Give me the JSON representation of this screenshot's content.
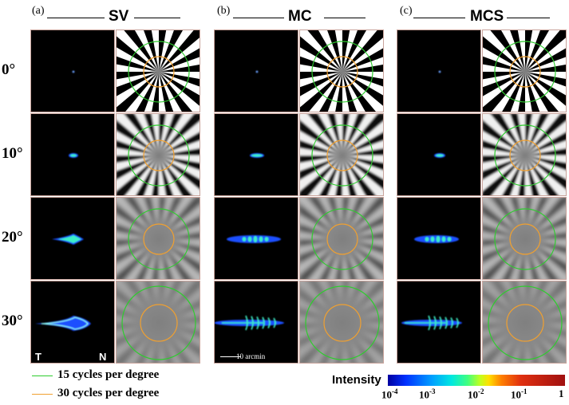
{
  "groups": [
    {
      "letter": "(a)",
      "title": "SV"
    },
    {
      "letter": "(b)",
      "title": "MC"
    },
    {
      "letter": "(c)",
      "title": "MCS"
    }
  ],
  "angles": [
    "0°",
    "10°",
    "20°",
    "30°"
  ],
  "psf_labels": {
    "temporal": "T",
    "nasal": "N"
  },
  "scale_bar": "10 arcmin",
  "legend": [
    {
      "label": "15 cycles per degree",
      "color": "#2ecc2e"
    },
    {
      "label": "30 cycles per degree",
      "color": "#f0a030"
    }
  ],
  "colorbar": {
    "title": "Intensity",
    "ticks": [
      {
        "base": "10",
        "exp": "-4"
      },
      {
        "base": "10",
        "exp": "-3"
      },
      {
        "base": "10",
        "exp": "-2"
      },
      {
        "base": "10",
        "exp": "-1"
      },
      {
        "base": "1",
        "exp": ""
      }
    ]
  },
  "colors": {
    "circle_15cpd": "#2ecc2e",
    "circle_30cpd": "#f0a030",
    "psf_core": "#3cf0c8",
    "psf_halo": "#1a50ff"
  }
}
